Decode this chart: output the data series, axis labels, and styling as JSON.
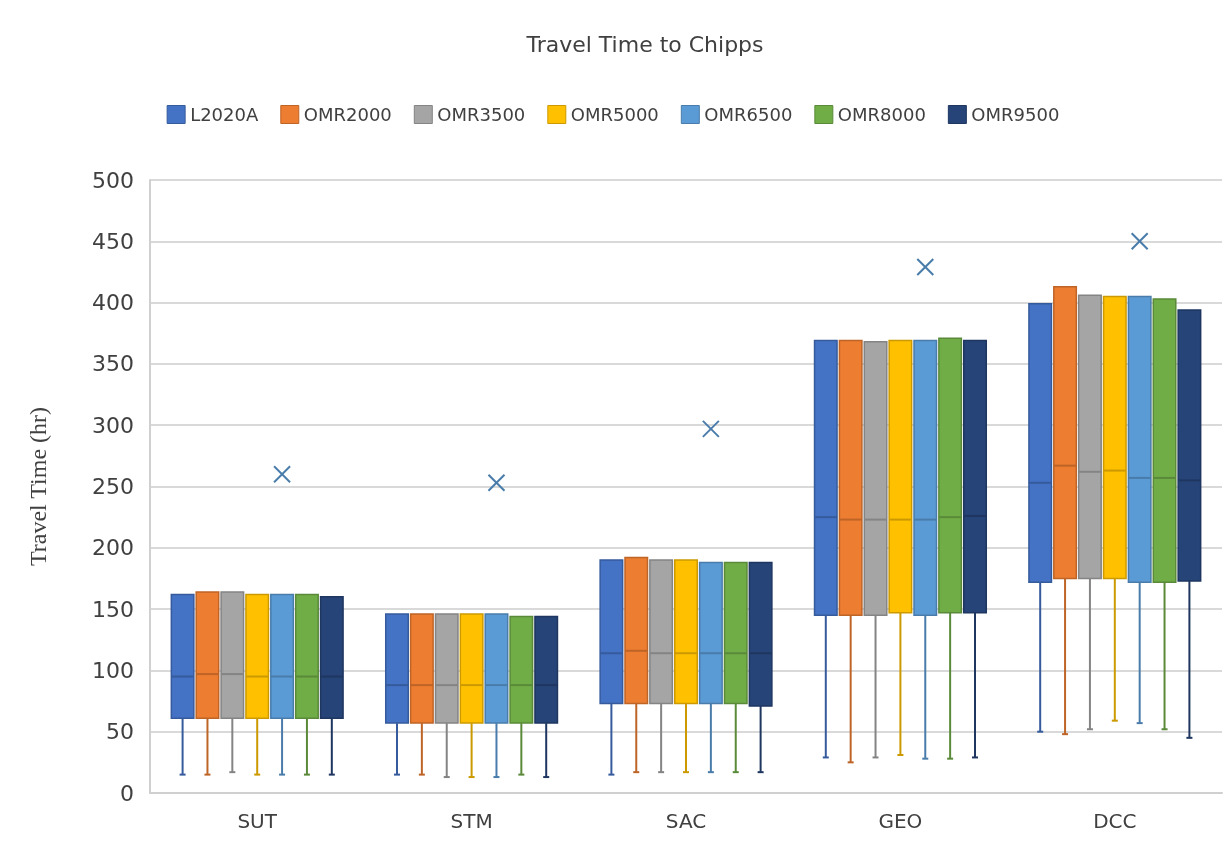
{
  "chart_data": {
    "type": "box",
    "title": "Travel Time to Chipps",
    "ylabel": "Travel Time (hr)",
    "categories": [
      "SUT",
      "STM",
      "SAC",
      "GEO",
      "DCC"
    ],
    "ylim": [
      0,
      500
    ],
    "yticks": [
      0,
      50,
      100,
      150,
      200,
      250,
      300,
      350,
      400,
      450,
      500
    ],
    "grid": "y",
    "legend": "top",
    "series": [
      {
        "name": "L2020A",
        "color": "#4472c4",
        "boxes": [
          {
            "low": 15,
            "q1": 61,
            "median": 95,
            "q3": 162,
            "high": 162
          },
          {
            "low": 15,
            "q1": 57,
            "median": 88,
            "q3": 146,
            "high": 146
          },
          {
            "low": 15,
            "q1": 73,
            "median": 114,
            "q3": 190,
            "high": 190
          },
          {
            "low": 29,
            "q1": 145,
            "median": 225,
            "q3": 369,
            "high": 369
          },
          {
            "low": 50,
            "q1": 172,
            "median": 253,
            "q3": 399,
            "high": 399
          }
        ]
      },
      {
        "name": "OMR2000",
        "color": "#ed7d31",
        "boxes": [
          {
            "low": 15,
            "q1": 61,
            "median": 97,
            "q3": 164,
            "high": 164
          },
          {
            "low": 15,
            "q1": 57,
            "median": 88,
            "q3": 146,
            "high": 146
          },
          {
            "low": 17,
            "q1": 73,
            "median": 116,
            "q3": 192,
            "high": 192
          },
          {
            "low": 25,
            "q1": 145,
            "median": 223,
            "q3": 369,
            "high": 369
          },
          {
            "low": 48,
            "q1": 175,
            "median": 267,
            "q3": 413,
            "high": 413
          }
        ]
      },
      {
        "name": "OMR3500",
        "color": "#a5a5a5",
        "boxes": [
          {
            "low": 17,
            "q1": 61,
            "median": 97,
            "q3": 164,
            "high": 164
          },
          {
            "low": 13,
            "q1": 57,
            "median": 88,
            "q3": 146,
            "high": 146
          },
          {
            "low": 17,
            "q1": 73,
            "median": 114,
            "q3": 190,
            "high": 190
          },
          {
            "low": 29,
            "q1": 145,
            "median": 223,
            "q3": 368,
            "high": 368
          },
          {
            "low": 52,
            "q1": 175,
            "median": 262,
            "q3": 406,
            "high": 406
          }
        ]
      },
      {
        "name": "OMR5000",
        "color": "#ffc000",
        "boxes": [
          {
            "low": 15,
            "q1": 61,
            "median": 95,
            "q3": 162,
            "high": 162
          },
          {
            "low": 13,
            "q1": 57,
            "median": 88,
            "q3": 146,
            "high": 146
          },
          {
            "low": 17,
            "q1": 73,
            "median": 114,
            "q3": 190,
            "high": 190
          },
          {
            "low": 31,
            "q1": 147,
            "median": 223,
            "q3": 369,
            "high": 369
          },
          {
            "low": 59,
            "q1": 175,
            "median": 263,
            "q3": 405,
            "high": 405
          }
        ]
      },
      {
        "name": "OMR6500",
        "color": "#5b9bd5",
        "boxes": [
          {
            "low": 15,
            "q1": 61,
            "median": 95,
            "q3": 162,
            "high": 162,
            "mean": 260
          },
          {
            "low": 13,
            "q1": 57,
            "median": 88,
            "q3": 146,
            "high": 146,
            "mean": 253
          },
          {
            "low": 17,
            "q1": 73,
            "median": 114,
            "q3": 188,
            "high": 188,
            "mean": 297
          },
          {
            "low": 28,
            "q1": 145,
            "median": 223,
            "q3": 369,
            "high": 369,
            "mean": 429
          },
          {
            "low": 57,
            "q1": 172,
            "median": 257,
            "q3": 405,
            "high": 405,
            "mean": 450
          }
        ]
      },
      {
        "name": "OMR8000",
        "color": "#70ad47",
        "boxes": [
          {
            "low": 15,
            "q1": 61,
            "median": 95,
            "q3": 162,
            "high": 162
          },
          {
            "low": 15,
            "q1": 57,
            "median": 88,
            "q3": 144,
            "high": 144
          },
          {
            "low": 17,
            "q1": 73,
            "median": 114,
            "q3": 188,
            "high": 188
          },
          {
            "low": 28,
            "q1": 147,
            "median": 225,
            "q3": 371,
            "high": 371
          },
          {
            "low": 52,
            "q1": 172,
            "median": 257,
            "q3": 403,
            "high": 403
          }
        ]
      },
      {
        "name": "OMR9500",
        "color": "#264478",
        "boxes": [
          {
            "low": 15,
            "q1": 61,
            "median": 95,
            "q3": 160,
            "high": 160
          },
          {
            "low": 13,
            "q1": 57,
            "median": 88,
            "q3": 144,
            "high": 144
          },
          {
            "low": 17,
            "q1": 71,
            "median": 114,
            "q3": 188,
            "high": 188
          },
          {
            "low": 29,
            "q1": 147,
            "median": 226,
            "q3": 369,
            "high": 369
          },
          {
            "low": 45,
            "q1": 173,
            "median": 255,
            "q3": 394,
            "high": 394
          }
        ]
      }
    ]
  }
}
